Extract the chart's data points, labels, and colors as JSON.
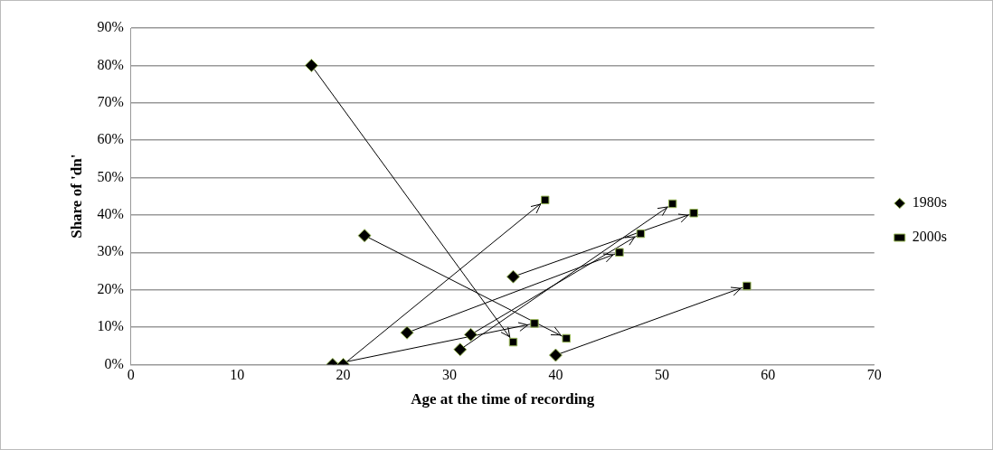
{
  "chart_data": {
    "type": "scatter",
    "xlabel": "Age at the time of recording",
    "ylabel": "Share of 'dn'",
    "xlim": [
      0,
      70
    ],
    "xticks": [
      0,
      10,
      20,
      30,
      40,
      50,
      60,
      70
    ],
    "ylim": [
      0,
      90
    ],
    "yticks": [
      {
        "value": 0,
        "label": "0%"
      },
      {
        "value": 10,
        "label": "10%"
      },
      {
        "value": 20,
        "label": "20%"
      },
      {
        "value": 30,
        "label": "30%"
      },
      {
        "value": 40,
        "label": "40%"
      },
      {
        "value": 50,
        "label": "50%"
      },
      {
        "value": 60,
        "label": "60%"
      },
      {
        "value": 70,
        "label": "70%"
      },
      {
        "value": 80,
        "label": "80%"
      },
      {
        "value": 90,
        "label": "90%"
      }
    ],
    "grid": "y",
    "legend": "right",
    "series": [
      {
        "name": "1980s",
        "color": "#000000",
        "marker": "diamond",
        "x": [
          17,
          19,
          20,
          22,
          26,
          31,
          32,
          36,
          40
        ],
        "values": [
          80,
          0,
          0,
          34.5,
          8.5,
          4,
          8,
          23.5,
          2.5
        ]
      },
      {
        "name": "2000s",
        "color": "#000000",
        "marker": "square",
        "x": [
          36,
          38,
          39,
          41,
          46,
          51,
          48,
          53,
          58
        ],
        "values": [
          6,
          11,
          44,
          7,
          30,
          43,
          35,
          40.5,
          21
        ]
      },
      {
        "type": "line",
        "color": "#000000",
        "marker": "none",
        "x": [
          17,
          36
        ],
        "values": [
          80,
          6
        ]
      },
      {
        "type": "line",
        "color": "#000000",
        "marker": "none",
        "x": [
          19,
          38
        ],
        "values": [
          0,
          11
        ]
      },
      {
        "type": "line",
        "color": "#000000",
        "marker": "none",
        "x": [
          20,
          39
        ],
        "values": [
          0,
          44
        ]
      },
      {
        "type": "line",
        "color": "#000000",
        "marker": "none",
        "x": [
          22,
          41
        ],
        "values": [
          34.5,
          7
        ]
      },
      {
        "type": "line",
        "color": "#000000",
        "marker": "none",
        "x": [
          26,
          46
        ],
        "values": [
          8.5,
          30
        ]
      },
      {
        "type": "line",
        "color": "#000000",
        "marker": "none",
        "x": [
          31,
          51
        ],
        "values": [
          4,
          43
        ]
      },
      {
        "type": "line",
        "color": "#000000",
        "marker": "none",
        "x": [
          32,
          48
        ],
        "values": [
          8,
          35
        ]
      },
      {
        "type": "line",
        "color": "#000000",
        "marker": "none",
        "x": [
          36,
          53
        ],
        "values": [
          23.5,
          40.5
        ]
      },
      {
        "type": "line",
        "color": "#000000",
        "marker": "none",
        "x": [
          40,
          58
        ],
        "values": [
          2.5,
          21
        ]
      }
    ]
  }
}
